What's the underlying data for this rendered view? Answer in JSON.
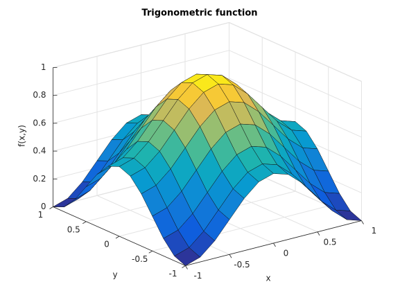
{
  "chart_data": {
    "type": "surface",
    "title": "Trigonometric function",
    "xlabel": "x",
    "ylabel": "y",
    "zlabel": "f(x,y)",
    "colormap": "parula",
    "grid": true,
    "xlim": [
      -1,
      1
    ],
    "ylim": [
      -1,
      1
    ],
    "zlim": [
      0,
      1
    ],
    "xticks": [
      -1,
      -0.5,
      0,
      0.5,
      1
    ],
    "yticks": [
      -1,
      -0.5,
      0,
      0.5,
      1
    ],
    "zticks": [
      0,
      0.2,
      0.4,
      0.6,
      0.8,
      1
    ],
    "x": [
      -1,
      -0.833,
      -0.667,
      -0.5,
      -0.333,
      -0.167,
      0,
      0.167,
      0.333,
      0.5,
      0.667,
      0.833,
      1
    ],
    "y": [
      -1,
      -0.833,
      -0.667,
      -0.5,
      -0.333,
      -0.167,
      0,
      0.167,
      0.333,
      0.5,
      0.667,
      0.833,
      1
    ],
    "z": [
      [
        0,
        0.034,
        0.125,
        0.25,
        0.375,
        0.467,
        0.5,
        0.467,
        0.375,
        0.25,
        0.125,
        0.034,
        0
      ],
      [
        0.034,
        0.068,
        0.159,
        0.284,
        0.409,
        0.501,
        0.534,
        0.501,
        0.409,
        0.284,
        0.159,
        0.068,
        0.034
      ],
      [
        0.125,
        0.159,
        0.25,
        0.375,
        0.5,
        0.592,
        0.625,
        0.592,
        0.5,
        0.375,
        0.25,
        0.159,
        0.125
      ],
      [
        0.25,
        0.284,
        0.375,
        0.5,
        0.625,
        0.717,
        0.75,
        0.717,
        0.625,
        0.5,
        0.375,
        0.284,
        0.25
      ],
      [
        0.375,
        0.409,
        0.5,
        0.625,
        0.75,
        0.842,
        0.875,
        0.842,
        0.75,
        0.625,
        0.5,
        0.409,
        0.375
      ],
      [
        0.467,
        0.501,
        0.592,
        0.717,
        0.842,
        0.934,
        0.967,
        0.934,
        0.842,
        0.717,
        0.592,
        0.501,
        0.467
      ],
      [
        0.5,
        0.534,
        0.625,
        0.75,
        0.875,
        0.967,
        1,
        0.967,
        0.875,
        0.75,
        0.625,
        0.534,
        0.5
      ],
      [
        0.467,
        0.501,
        0.592,
        0.717,
        0.842,
        0.934,
        0.967,
        0.934,
        0.842,
        0.717,
        0.592,
        0.501,
        0.467
      ],
      [
        0.375,
        0.409,
        0.5,
        0.625,
        0.75,
        0.842,
        0.875,
        0.842,
        0.75,
        0.625,
        0.5,
        0.409,
        0.375
      ],
      [
        0.25,
        0.284,
        0.375,
        0.5,
        0.625,
        0.717,
        0.75,
        0.717,
        0.625,
        0.5,
        0.375,
        0.284,
        0.25
      ],
      [
        0.125,
        0.159,
        0.25,
        0.375,
        0.5,
        0.592,
        0.625,
        0.592,
        0.5,
        0.375,
        0.25,
        0.159,
        0.125
      ],
      [
        0.034,
        0.068,
        0.159,
        0.284,
        0.409,
        0.501,
        0.534,
        0.501,
        0.409,
        0.284,
        0.159,
        0.068,
        0.034
      ],
      [
        0,
        0.034,
        0.125,
        0.25,
        0.375,
        0.467,
        0.5,
        0.467,
        0.375,
        0.25,
        0.125,
        0.034,
        0
      ]
    ]
  }
}
